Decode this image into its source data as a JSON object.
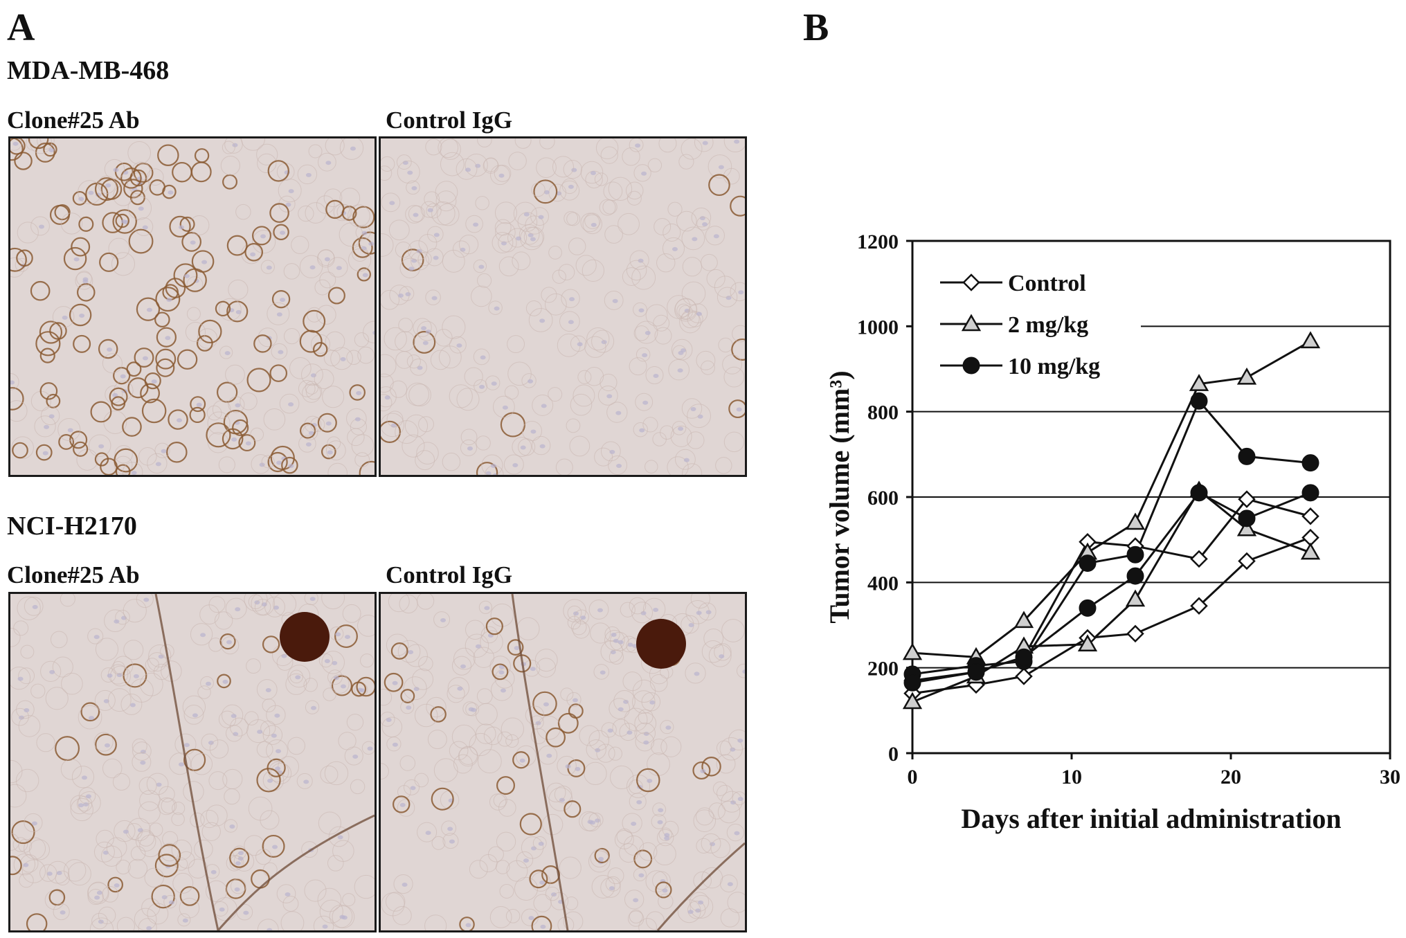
{
  "panel_a": {
    "letter": "A",
    "rows": [
      {
        "cell_line": "MDA-MB-468",
        "left_label": "Clone#25 Ab",
        "right_label": "Control IgG"
      },
      {
        "cell_line": "NCI-H2170",
        "left_label": "Clone#25 Ab",
        "right_label": "Control IgG"
      }
    ]
  },
  "panel_b": {
    "letter": "B"
  },
  "colors": {
    "tissue_bg": "#e0d6d4",
    "nucleus": "#b9b3cf",
    "dab_stain": "#8a5a32",
    "dark_stain": "#4a1a0c"
  },
  "chart_data": {
    "type": "line",
    "xlabel": "Days after initial administration",
    "ylabel": "Tumor volume (mm³)",
    "xlim": [
      0,
      30
    ],
    "ylim": [
      0,
      1200
    ],
    "xticks": [
      0,
      10,
      20,
      30
    ],
    "yticks": [
      0,
      200,
      400,
      600,
      800,
      1000,
      1200
    ],
    "grid": "horizontal",
    "legend_position": "top-left",
    "legend": [
      {
        "name": "Control",
        "marker": "diamond-open"
      },
      {
        "name": "2 mg/kg",
        "marker": "triangle-gray"
      },
      {
        "name": "10 mg/kg",
        "marker": "circle-filled"
      }
    ],
    "series": [
      {
        "group": "Control",
        "x": [
          0,
          4,
          7,
          11,
          14,
          18,
          21,
          25
        ],
        "y": [
          140,
          160,
          180,
          270,
          280,
          345,
          450,
          505
        ]
      },
      {
        "group": "Control",
        "x": [
          0,
          4,
          7,
          11,
          14,
          18,
          21,
          25
        ],
        "y": [
          170,
          190,
          225,
          495,
          485,
          455,
          595,
          555
        ]
      },
      {
        "group": "2 mg/kg",
        "x": [
          0,
          4,
          7,
          11,
          14,
          18,
          21,
          25
        ],
        "y": [
          235,
          225,
          310,
          470,
          540,
          865,
          880,
          965
        ]
      },
      {
        "group": "2 mg/kg",
        "x": [
          0,
          4,
          7,
          11,
          14,
          18,
          21,
          25
        ],
        "y": [
          120,
          180,
          250,
          255,
          360,
          615,
          525,
          470
        ]
      },
      {
        "group": "10 mg/kg",
        "x": [
          0,
          4,
          7,
          11,
          14,
          18,
          21,
          25
        ],
        "y": [
          185,
          205,
          215,
          445,
          465,
          825,
          695,
          680
        ]
      },
      {
        "group": "10 mg/kg",
        "x": [
          0,
          4,
          7,
          11,
          14,
          18,
          21,
          25
        ],
        "y": [
          165,
          190,
          225,
          340,
          415,
          610,
          550,
          610
        ]
      }
    ]
  }
}
